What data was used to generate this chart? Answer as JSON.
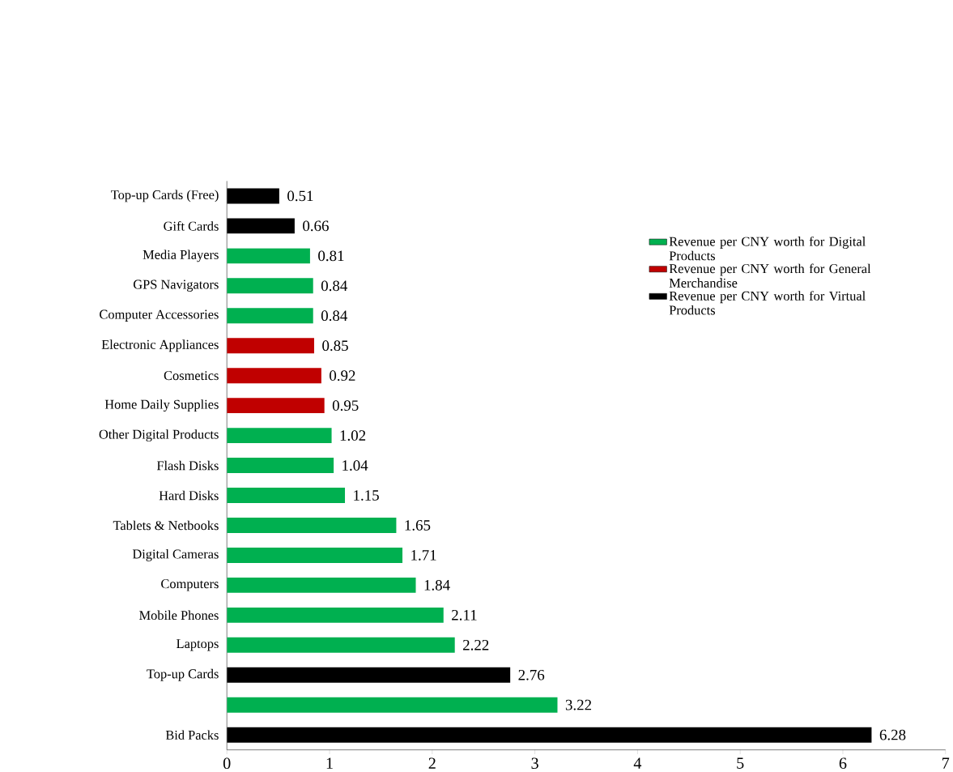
{
  "chart_data": {
    "type": "bar",
    "orientation": "horizontal",
    "categories": [
      "Top-up Cards (Free)",
      "Gift Cards",
      "Media Players",
      "GPS Navigators",
      "Computer Accessories",
      "Electronic Appliances",
      "Cosmetics",
      "Home Daily Supplies",
      "Other Digital Products",
      "Flash Disks",
      "Hard Disks",
      "Tablets & Netbooks",
      "Digital Cameras",
      "Computers",
      "Mobile Phones",
      "Laptops",
      "Top-up Cards",
      null,
      "Bid Packs"
    ],
    "series": [
      {
        "name": "Revenue per CNY worth for Digital Products",
        "color": "#00b050",
        "values": [
          null,
          null,
          0.81,
          0.84,
          0.84,
          null,
          null,
          null,
          1.02,
          1.04,
          1.15,
          1.65,
          1.71,
          1.84,
          2.11,
          2.22,
          null,
          3.22,
          null
        ]
      },
      {
        "name": "Revenue per CNY worth for General Merchandise",
        "color": "#c00000",
        "values": [
          null,
          null,
          null,
          null,
          null,
          0.85,
          0.92,
          0.95,
          null,
          null,
          null,
          null,
          null,
          null,
          null,
          null,
          null,
          null,
          null
        ]
      },
      {
        "name": "Revenue per CNY worth for Virtual Products",
        "color": "#000000",
        "values": [
          0.51,
          0.66,
          null,
          null,
          null,
          null,
          null,
          null,
          null,
          null,
          null,
          null,
          null,
          null,
          null,
          null,
          2.76,
          null,
          6.28
        ]
      }
    ],
    "xlim": [
      0,
      7
    ],
    "xticks": [
      0,
      1,
      2,
      3,
      4,
      5,
      6,
      7
    ],
    "data_labels": true,
    "grid": false,
    "legend": "top right"
  }
}
